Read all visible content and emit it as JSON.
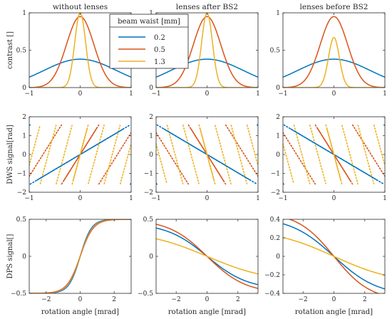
{
  "legend": {
    "title": "beam waist [mm]",
    "entries": [
      {
        "label": "0.2",
        "color": "#0072BD"
      },
      {
        "label": "0.5",
        "color": "#D95319"
      },
      {
        "label": "1.3",
        "color": "#EDB120"
      }
    ]
  },
  "chart_data": [
    {
      "type": "line",
      "title": "without lenses",
      "ylabel": "contrast []",
      "xlabel": "",
      "xlim": [
        -1,
        1
      ],
      "ylim": [
        0,
        1
      ],
      "xticks": [
        -1,
        0,
        1
      ],
      "xtick_labels": [
        "−1",
        "0",
        "1"
      ],
      "yticks": [
        0,
        0.5,
        1
      ],
      "ytick_labels": [
        "0",
        "0.5",
        "1"
      ],
      "series": [
        {
          "name": "0.2",
          "shape": "gauss",
          "amp": 0.38,
          "width": 1.0
        },
        {
          "name": "0.5",
          "shape": "gauss",
          "amp": 0.95,
          "width": 0.38
        },
        {
          "name": "1.3",
          "shape": "gauss",
          "amp": 1.0,
          "width": 0.15
        }
      ]
    },
    {
      "type": "line",
      "title": "lenses after BS2",
      "ylabel": "",
      "xlabel": "",
      "xlim": [
        -1,
        1
      ],
      "ylim": [
        0,
        1
      ],
      "xticks": [
        -1,
        0,
        1
      ],
      "xtick_labels": [
        "−1",
        "0",
        "1"
      ],
      "yticks": [
        0,
        0.5,
        1
      ],
      "ytick_labels": [
        "0",
        "0.5",
        "1"
      ],
      "series": [
        {
          "name": "0.2",
          "shape": "gauss",
          "amp": 0.38,
          "width": 1.0
        },
        {
          "name": "0.5",
          "shape": "gauss",
          "amp": 0.95,
          "width": 0.38
        },
        {
          "name": "1.3",
          "shape": "gauss",
          "amp": 1.0,
          "width": 0.15
        }
      ]
    },
    {
      "type": "line",
      "title": "lenses before BS2",
      "ylabel": "",
      "xlabel": "",
      "xlim": [
        -1,
        1
      ],
      "ylim": [
        0,
        1
      ],
      "xticks": [
        -1,
        0,
        1
      ],
      "xtick_labels": [
        "−1",
        "0",
        "1"
      ],
      "yticks": [
        0,
        0.5,
        1
      ],
      "ytick_labels": [
        "0",
        "0.5",
        "1"
      ],
      "series": [
        {
          "name": "0.2",
          "shape": "gauss",
          "amp": 0.38,
          "width": 1.0
        },
        {
          "name": "0.5",
          "shape": "gauss",
          "amp": 0.95,
          "width": 0.38
        },
        {
          "name": "1.3",
          "shape": "gauss",
          "amp": 0.67,
          "width": 0.15
        }
      ]
    },
    {
      "type": "line",
      "title": "",
      "ylabel": "DWS signal[rad]",
      "xlabel": "",
      "xlim": [
        -1,
        1
      ],
      "ylim": [
        -2,
        2
      ],
      "xticks": [
        -1,
        0,
        1
      ],
      "xtick_labels": [
        "−1",
        "0",
        "1"
      ],
      "yticks": [
        -2,
        -1,
        0,
        1,
        2
      ],
      "ytick_labels": [
        "−2",
        "−1",
        "0",
        "1",
        "2"
      ],
      "series": [
        {
          "name": "0.2",
          "shape": "wrap",
          "slope": 1.6,
          "dotted": true
        },
        {
          "name": "0.5",
          "shape": "wrap",
          "slope": 4.3,
          "dotted": true
        },
        {
          "name": "1.3",
          "shape": "wrap",
          "slope": 10.0,
          "dotted": true
        },
        {
          "name": "0.2",
          "shape": "linear",
          "slope": 1.6,
          "x0": -0.85,
          "x1": 0.85
        },
        {
          "name": "0.5",
          "shape": "linear",
          "slope": 4.3,
          "x0": -0.33,
          "x1": 0.33
        },
        {
          "name": "1.3",
          "shape": "linear",
          "slope": 10.0,
          "x0": -0.14,
          "x1": 0.14
        }
      ]
    },
    {
      "type": "line",
      "title": "",
      "ylabel": "",
      "xlabel": "",
      "xlim": [
        -1,
        1
      ],
      "ylim": [
        -2,
        2
      ],
      "xticks": [
        -1,
        0,
        1
      ],
      "xtick_labels": [
        "−1",
        "0",
        "1"
      ],
      "yticks": [
        -2,
        -1,
        0,
        1,
        2
      ],
      "ytick_labels": [
        "−2",
        "−1",
        "0",
        "1",
        "2"
      ],
      "series": [
        {
          "name": "0.2",
          "shape": "wrap",
          "slope": -1.6,
          "dotted": true
        },
        {
          "name": "0.5",
          "shape": "wrap",
          "slope": -4.3,
          "dotted": true
        },
        {
          "name": "1.3",
          "shape": "wrap",
          "slope": -10.0,
          "dotted": true
        },
        {
          "name": "0.2",
          "shape": "linear",
          "slope": -1.6,
          "x0": -0.85,
          "x1": 0.85
        },
        {
          "name": "0.5",
          "shape": "linear",
          "slope": -4.3,
          "x0": -0.33,
          "x1": 0.33
        },
        {
          "name": "1.3",
          "shape": "linear",
          "slope": -10.0,
          "x0": -0.14,
          "x1": 0.14
        }
      ]
    },
    {
      "type": "line",
      "title": "",
      "ylabel": "",
      "xlabel": "",
      "xlim": [
        -1,
        1
      ],
      "ylim": [
        -2,
        2
      ],
      "xticks": [
        -1,
        0,
        1
      ],
      "xtick_labels": [
        "−1",
        "0",
        "1"
      ],
      "yticks": [
        -2,
        -1,
        0,
        1,
        2
      ],
      "ytick_labels": [
        "−2",
        "−1",
        "0",
        "1",
        "2"
      ],
      "series": [
        {
          "name": "0.2",
          "shape": "wrap",
          "slope": -1.6,
          "dotted": true
        },
        {
          "name": "0.5",
          "shape": "wrap",
          "slope": -4.3,
          "dotted": true
        },
        {
          "name": "1.3",
          "shape": "wrap",
          "slope": -10.0,
          "dotted": true
        },
        {
          "name": "0.2",
          "shape": "linear",
          "slope": -1.6,
          "x0": -0.85,
          "x1": 0.85
        },
        {
          "name": "0.5",
          "shape": "linear",
          "slope": -4.3,
          "x0": -0.33,
          "x1": 0.33
        },
        {
          "name": "1.3",
          "shape": "linear",
          "slope": -10.0,
          "x0": -0.14,
          "x1": 0.14
        }
      ]
    },
    {
      "type": "line",
      "title": "",
      "ylabel": "DPS signal[]",
      "xlabel": "rotation angle [mrad]",
      "xlim": [
        -3,
        3
      ],
      "ylim": [
        -0.5,
        0.5
      ],
      "xticks": [
        -2,
        0,
        2
      ],
      "xtick_labels": [
        "−2",
        "0",
        "2"
      ],
      "yticks": [
        -0.5,
        0,
        0.5
      ],
      "ytick_labels": [
        "−0.5",
        "0",
        "0.5"
      ],
      "series": [
        {
          "name": "0.2",
          "shape": "tanh",
          "amp": 0.5,
          "k": 1.5
        },
        {
          "name": "0.5",
          "shape": "tanh",
          "amp": 0.5,
          "k": 1.3
        },
        {
          "name": "1.3",
          "shape": "tanh",
          "amp": 0.5,
          "k": 1.4,
          "opacity": 0.55
        }
      ]
    },
    {
      "type": "line",
      "title": "",
      "ylabel": "",
      "xlabel": "rotation angle [mrad]",
      "xlim": [
        -3.3,
        3.3
      ],
      "ylim": [
        -0.5,
        0.5
      ],
      "xticks": [
        -2,
        0,
        2
      ],
      "xtick_labels": [
        "−2",
        "0",
        "2"
      ],
      "yticks": [
        -0.5,
        0,
        0.5
      ],
      "ytick_labels": [
        "−0.5",
        "0",
        "0.5"
      ],
      "series": [
        {
          "name": "0.2",
          "shape": "tanh",
          "amp": 0.45,
          "k": 0.38
        },
        {
          "name": "0.5",
          "shape": "tanh",
          "amp": 0.5,
          "k": 0.4
        },
        {
          "name": "1.3",
          "shape": "tanh",
          "amp": 0.35,
          "k": 0.25
        }
      ]
    },
    {
      "type": "line",
      "title": "",
      "ylabel": "",
      "xlabel": "rotation angle [mrad]",
      "xlim": [
        -3.3,
        3.3
      ],
      "ylim": [
        -0.4,
        0.4
      ],
      "xticks": [
        -2,
        0,
        2
      ],
      "xtick_labels": [
        "−2",
        "0",
        "2"
      ],
      "yticks": [
        -0.4,
        -0.2,
        0,
        0.2,
        0.4
      ],
      "ytick_labels": [
        "−0.4",
        "−0.2",
        "0",
        "0.2",
        "0.4"
      ],
      "series": [
        {
          "name": "0.2",
          "shape": "tanh",
          "amp": 0.43,
          "k": 0.35
        },
        {
          "name": "0.5",
          "shape": "tanh",
          "amp": 0.48,
          "k": 0.42
        },
        {
          "name": "1.3",
          "shape": "tanh",
          "amp": 0.3,
          "k": 0.25
        }
      ]
    }
  ]
}
